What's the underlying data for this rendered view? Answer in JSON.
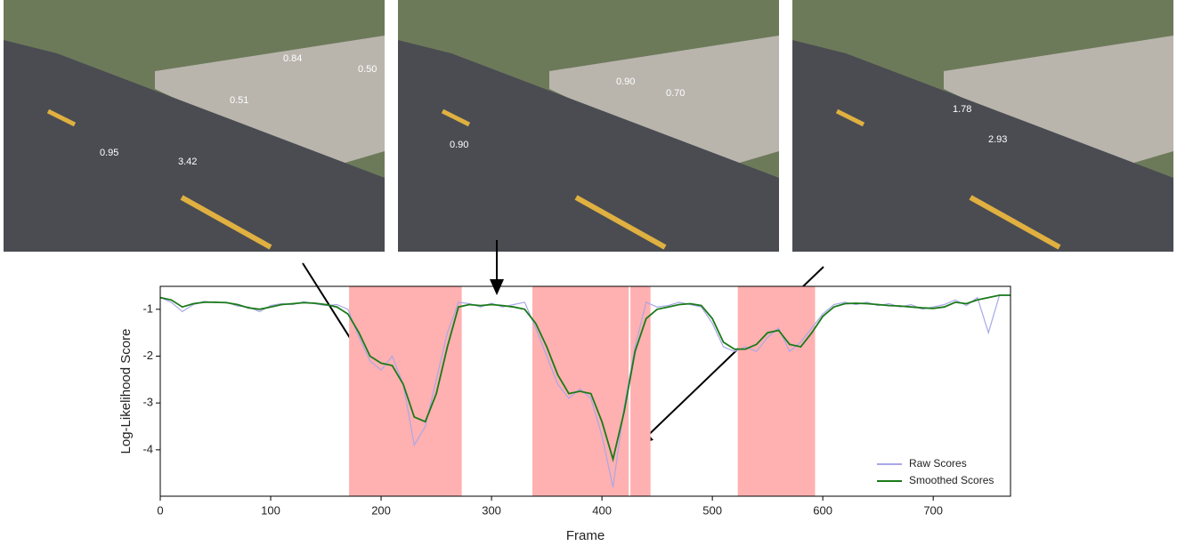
{
  "photo_labels": [
    [
      "0.95",
      "3.42",
      "0.51",
      "0.84",
      "0.50"
    ],
    [
      "0.90",
      "0.90",
      "0.70"
    ],
    [
      "1.78",
      "2.93"
    ]
  ],
  "chart_data": {
    "type": "line",
    "xlabel": "Frame",
    "ylabel": "Log-Likelihood Score",
    "xlim": [
      0,
      770
    ],
    "ylim": [
      -4.99,
      -0.51
    ],
    "xticks": [
      0,
      100,
      200,
      300,
      400,
      500,
      600,
      700
    ],
    "yticks": [
      -1,
      -2,
      -3,
      -4
    ],
    "shaded_spans": [
      [
        171,
        273
      ],
      [
        337,
        444
      ],
      [
        523,
        593
      ]
    ],
    "shade_color": "#ffb0b0",
    "marker_x": 425,
    "legend": "lower right",
    "x": [
      0,
      10,
      20,
      30,
      40,
      50,
      60,
      70,
      80,
      90,
      100,
      110,
      120,
      130,
      140,
      150,
      160,
      170,
      180,
      190,
      200,
      210,
      220,
      230,
      240,
      250,
      260,
      270,
      280,
      290,
      300,
      310,
      320,
      330,
      340,
      350,
      360,
      370,
      380,
      390,
      400,
      410,
      420,
      430,
      440,
      450,
      460,
      470,
      480,
      490,
      500,
      510,
      520,
      530,
      540,
      550,
      560,
      570,
      580,
      590,
      600,
      610,
      620,
      630,
      640,
      650,
      660,
      670,
      680,
      690,
      700,
      710,
      720,
      730,
      740,
      750,
      760,
      770
    ],
    "series": [
      {
        "name": "Raw Scores",
        "color": "#a8a8e8",
        "values": [
          -0.75,
          -0.85,
          -1.05,
          -0.9,
          -0.83,
          -0.86,
          -0.85,
          -0.93,
          -0.95,
          -1.05,
          -0.92,
          -0.88,
          -0.9,
          -0.84,
          -0.88,
          -0.92,
          -0.9,
          -1.0,
          -1.6,
          -2.1,
          -2.3,
          -2.0,
          -2.6,
          -3.9,
          -3.5,
          -2.5,
          -1.5,
          -0.85,
          -0.88,
          -0.95,
          -0.87,
          -0.95,
          -0.9,
          -0.85,
          -1.4,
          -2.0,
          -2.6,
          -2.9,
          -2.7,
          -2.9,
          -3.7,
          -4.8,
          -3.1,
          -1.8,
          -0.85,
          -0.95,
          -0.92,
          -0.85,
          -0.9,
          -0.95,
          -1.3,
          -1.8,
          -1.9,
          -1.8,
          -1.9,
          -1.6,
          -1.4,
          -1.9,
          -1.7,
          -1.4,
          -1.1,
          -0.9,
          -0.85,
          -0.9,
          -0.85,
          -0.92,
          -0.88,
          -0.95,
          -0.9,
          -1.0,
          -0.95,
          -0.9,
          -0.8,
          -0.92,
          -0.75,
          -1.5,
          -0.7,
          -0.7
        ]
      },
      {
        "name": "Smoothed Scores",
        "color": "#1a7a1a",
        "values": [
          -0.75,
          -0.8,
          -0.95,
          -0.88,
          -0.85,
          -0.85,
          -0.86,
          -0.9,
          -0.97,
          -1.0,
          -0.95,
          -0.9,
          -0.88,
          -0.86,
          -0.87,
          -0.9,
          -0.95,
          -1.1,
          -1.5,
          -2.0,
          -2.15,
          -2.2,
          -2.6,
          -3.3,
          -3.4,
          -2.8,
          -1.8,
          -0.95,
          -0.9,
          -0.92,
          -0.9,
          -0.92,
          -0.95,
          -1.0,
          -1.3,
          -1.8,
          -2.4,
          -2.8,
          -2.75,
          -2.8,
          -3.4,
          -4.2,
          -3.2,
          -1.9,
          -1.2,
          -1.0,
          -0.95,
          -0.9,
          -0.88,
          -0.92,
          -1.2,
          -1.7,
          -1.85,
          -1.85,
          -1.75,
          -1.5,
          -1.45,
          -1.75,
          -1.8,
          -1.5,
          -1.15,
          -0.95,
          -0.88,
          -0.87,
          -0.88,
          -0.9,
          -0.92,
          -0.93,
          -0.95,
          -0.97,
          -0.98,
          -0.95,
          -0.85,
          -0.88,
          -0.8,
          -0.75,
          -0.7,
          -0.7
        ]
      }
    ]
  }
}
